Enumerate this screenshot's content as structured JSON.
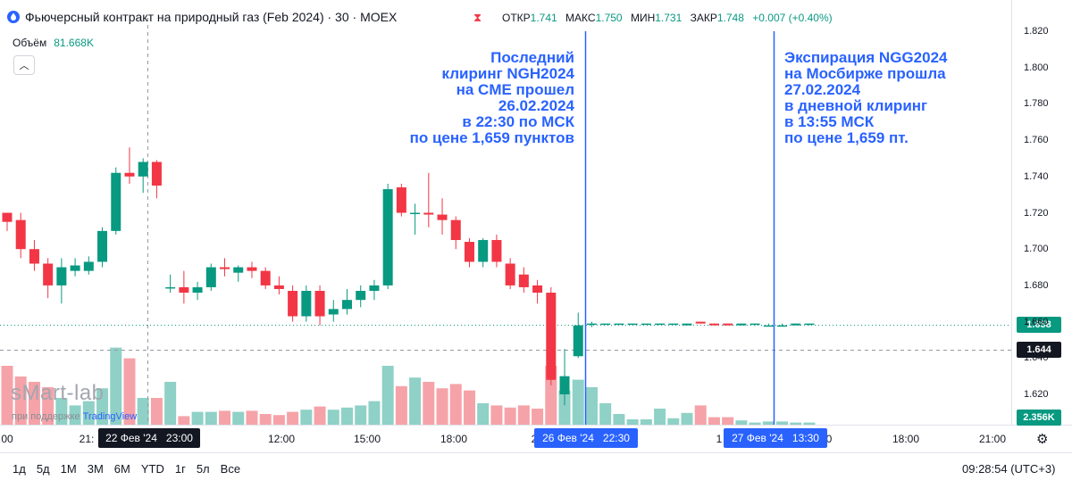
{
  "header": {
    "title": "Фьючерсный контракт на природный газ (Feb 2024) · 30 · MOEX",
    "open_label": "ОТКР",
    "open": "1.741",
    "high_label": "МАКС",
    "high": "1.750",
    "low_label": "МИН",
    "low": "1.731",
    "close_label": "ЗАКР",
    "close": "1.748",
    "change": "+0.007 (+0.40%)"
  },
  "volume": {
    "label": "Объём",
    "value": "81.668K"
  },
  "watermark": {
    "main": "sMart-lab",
    "sub": "при поддержке",
    "brand": "TradingView"
  },
  "annotations": {
    "left": "Последний\nклиринг NGH2024\nна CME прошел\n26.02.2024\nв 22:30 по МСК\nпо цене 1,659 пунктов",
    "right": "Экспирация NGG2024\nна Мосбирже прошла\n27.02.2024\nв дневной клиринг\nв 13:55 МСК\nпо цене 1,659 пт."
  },
  "price_labels": {
    "last": "1.658",
    "crosshair": "1.644",
    "volume": "2.356K"
  },
  "timeframes": [
    "1д",
    "5д",
    "1М",
    "3М",
    "6М",
    "YTD",
    "1г",
    "5л",
    "Все"
  ],
  "clock": "09:28:54 (UTC+3)",
  "x_axis": {
    "ticks": [
      "00",
      "21:",
      "12:00",
      "15:00",
      "18:00",
      "2",
      "1",
      "0",
      "18:00",
      "21:00"
    ],
    "box1": "22 Фев '24   23:00",
    "box2": "26 Фев '24   22:30",
    "box3": "27 Фев '24   13:30"
  },
  "colors": {
    "up": "#089981",
    "down": "#f23645",
    "vol_up": "#8fd1c6",
    "vol_down": "#f5a3a8",
    "accent": "#2962ff"
  },
  "chart_data": {
    "type": "candlestick",
    "title": "Фьючерсный контракт на природный газ (Feb 2024) · 30 · MOEX",
    "ylim": [
      1.6,
      1.825
    ],
    "y_ticks": [
      "1.620",
      "1.640",
      "1.660",
      "1.680",
      "1.700",
      "1.720",
      "1.740",
      "1.760",
      "1.780",
      "1.800",
      "1.820"
    ],
    "candles": [
      {
        "o": 1.72,
        "h": 1.72,
        "l": 1.71,
        "c": 1.715
      },
      {
        "o": 1.716,
        "h": 1.72,
        "l": 1.695,
        "c": 1.7
      },
      {
        "o": 1.7,
        "h": 1.705,
        "l": 1.688,
        "c": 1.692
      },
      {
        "o": 1.692,
        "h": 1.695,
        "l": 1.673,
        "c": 1.68
      },
      {
        "o": 1.68,
        "h": 1.695,
        "l": 1.67,
        "c": 1.69
      },
      {
        "o": 1.688,
        "h": 1.695,
        "l": 1.685,
        "c": 1.691
      },
      {
        "o": 1.688,
        "h": 1.696,
        "l": 1.686,
        "c": 1.693
      },
      {
        "o": 1.693,
        "h": 1.712,
        "l": 1.69,
        "c": 1.71
      },
      {
        "o": 1.71,
        "h": 1.745,
        "l": 1.708,
        "c": 1.742
      },
      {
        "o": 1.742,
        "h": 1.756,
        "l": 1.736,
        "c": 1.74
      },
      {
        "o": 1.74,
        "h": 1.75,
        "l": 1.731,
        "c": 1.748
      },
      {
        "o": 1.748,
        "h": 1.749,
        "l": 1.728,
        "c": 1.735
      },
      {
        "o": 1.679,
        "h": 1.686,
        "l": 1.676,
        "c": 1.679
      },
      {
        "o": 1.679,
        "h": 1.688,
        "l": 1.67,
        "c": 1.676
      },
      {
        "o": 1.676,
        "h": 1.682,
        "l": 1.672,
        "c": 1.679
      },
      {
        "o": 1.679,
        "h": 1.692,
        "l": 1.677,
        "c": 1.69
      },
      {
        "o": 1.69,
        "h": 1.695,
        "l": 1.685,
        "c": 1.689
      },
      {
        "o": 1.687,
        "h": 1.691,
        "l": 1.682,
        "c": 1.69
      },
      {
        "o": 1.69,
        "h": 1.693,
        "l": 1.684,
        "c": 1.688
      },
      {
        "o": 1.688,
        "h": 1.69,
        "l": 1.678,
        "c": 1.68
      },
      {
        "o": 1.68,
        "h": 1.685,
        "l": 1.675,
        "c": 1.678
      },
      {
        "o": 1.677,
        "h": 1.68,
        "l": 1.66,
        "c": 1.663
      },
      {
        "o": 1.663,
        "h": 1.68,
        "l": 1.66,
        "c": 1.677
      },
      {
        "o": 1.677,
        "h": 1.68,
        "l": 1.658,
        "c": 1.663
      },
      {
        "o": 1.664,
        "h": 1.672,
        "l": 1.66,
        "c": 1.667
      },
      {
        "o": 1.667,
        "h": 1.678,
        "l": 1.664,
        "c": 1.672
      },
      {
        "o": 1.672,
        "h": 1.68,
        "l": 1.668,
        "c": 1.677
      },
      {
        "o": 1.677,
        "h": 1.683,
        "l": 1.672,
        "c": 1.68
      },
      {
        "o": 1.68,
        "h": 1.736,
        "l": 1.678,
        "c": 1.733
      },
      {
        "o": 1.734,
        "h": 1.736,
        "l": 1.718,
        "c": 1.72
      },
      {
        "o": 1.72,
        "h": 1.725,
        "l": 1.708,
        "c": 1.72
      },
      {
        "o": 1.72,
        "h": 1.742,
        "l": 1.712,
        "c": 1.719
      },
      {
        "o": 1.719,
        "h": 1.728,
        "l": 1.708,
        "c": 1.716
      },
      {
        "o": 1.716,
        "h": 1.718,
        "l": 1.7,
        "c": 1.705
      },
      {
        "o": 1.704,
        "h": 1.706,
        "l": 1.69,
        "c": 1.693
      },
      {
        "o": 1.693,
        "h": 1.706,
        "l": 1.69,
        "c": 1.705
      },
      {
        "o": 1.705,
        "h": 1.708,
        "l": 1.69,
        "c": 1.693
      },
      {
        "o": 1.692,
        "h": 1.695,
        "l": 1.678,
        "c": 1.68
      },
      {
        "o": 1.686,
        "h": 1.69,
        "l": 1.676,
        "c": 1.679
      },
      {
        "o": 1.68,
        "h": 1.683,
        "l": 1.67,
        "c": 1.676
      },
      {
        "o": 1.676,
        "h": 1.679,
        "l": 1.625,
        "c": 1.628
      },
      {
        "o": 1.62,
        "h": 1.645,
        "l": 1.614,
        "c": 1.63
      },
      {
        "o": 1.641,
        "h": 1.665,
        "l": 1.64,
        "c": 1.658
      },
      {
        "o": 1.659,
        "h": 1.66,
        "l": 1.657,
        "c": 1.659
      },
      {
        "o": 1.659,
        "h": 1.659,
        "l": 1.659,
        "c": 1.659
      },
      {
        "o": 1.659,
        "h": 1.659,
        "l": 1.659,
        "c": 1.659
      },
      {
        "o": 1.659,
        "h": 1.659,
        "l": 1.659,
        "c": 1.659
      },
      {
        "o": 1.659,
        "h": 1.659,
        "l": 1.659,
        "c": 1.659
      },
      {
        "o": 1.659,
        "h": 1.659,
        "l": 1.659,
        "c": 1.659
      },
      {
        "o": 1.659,
        "h": 1.659,
        "l": 1.659,
        "c": 1.659
      },
      {
        "o": 1.658,
        "h": 1.659,
        "l": 1.658,
        "c": 1.659
      },
      {
        "o": 1.66,
        "h": 1.66,
        "l": 1.659,
        "c": 1.659
      },
      {
        "o": 1.659,
        "h": 1.659,
        "l": 1.658,
        "c": 1.658
      },
      {
        "o": 1.659,
        "h": 1.659,
        "l": 1.658,
        "c": 1.658
      },
      {
        "o": 1.658,
        "h": 1.659,
        "l": 1.658,
        "c": 1.659
      },
      {
        "o": 1.659,
        "h": 1.659,
        "l": 1.658,
        "c": 1.659
      },
      {
        "o": 1.658,
        "h": 1.659,
        "l": 1.658,
        "c": 1.658
      },
      {
        "o": 1.658,
        "h": 1.659,
        "l": 1.658,
        "c": 1.658
      },
      {
        "o": 1.658,
        "h": 1.659,
        "l": 1.658,
        "c": 1.659
      },
      {
        "o": 1.659,
        "h": 1.659,
        "l": 1.658,
        "c": 1.659
      }
    ],
    "volumes": [
      0.55,
      0.45,
      0.4,
      0.35,
      0.25,
      0.18,
      0.22,
      0.34,
      0.72,
      0.62,
      0.25,
      0.25,
      0.4,
      0.08,
      0.12,
      0.12,
      0.13,
      0.12,
      0.13,
      0.1,
      0.09,
      0.12,
      0.14,
      0.17,
      0.14,
      0.16,
      0.18,
      0.22,
      0.55,
      0.36,
      0.44,
      0.4,
      0.34,
      0.38,
      0.32,
      0.2,
      0.18,
      0.16,
      0.18,
      0.15,
      0.55,
      0.32,
      0.42,
      0.35,
      0.2,
      0.1,
      0.05,
      0.05,
      0.15,
      0.06,
      0.11,
      0.18,
      0.07,
      0.07,
      0.04,
      0.02,
      0.03,
      0.03,
      0.02,
      0.02
    ],
    "x_ticks": [
      "00",
      "21:",
      "12:00",
      "15:00",
      "18:00",
      "2",
      "1",
      "0",
      "18:00",
      "21:00"
    ],
    "series": []
  }
}
